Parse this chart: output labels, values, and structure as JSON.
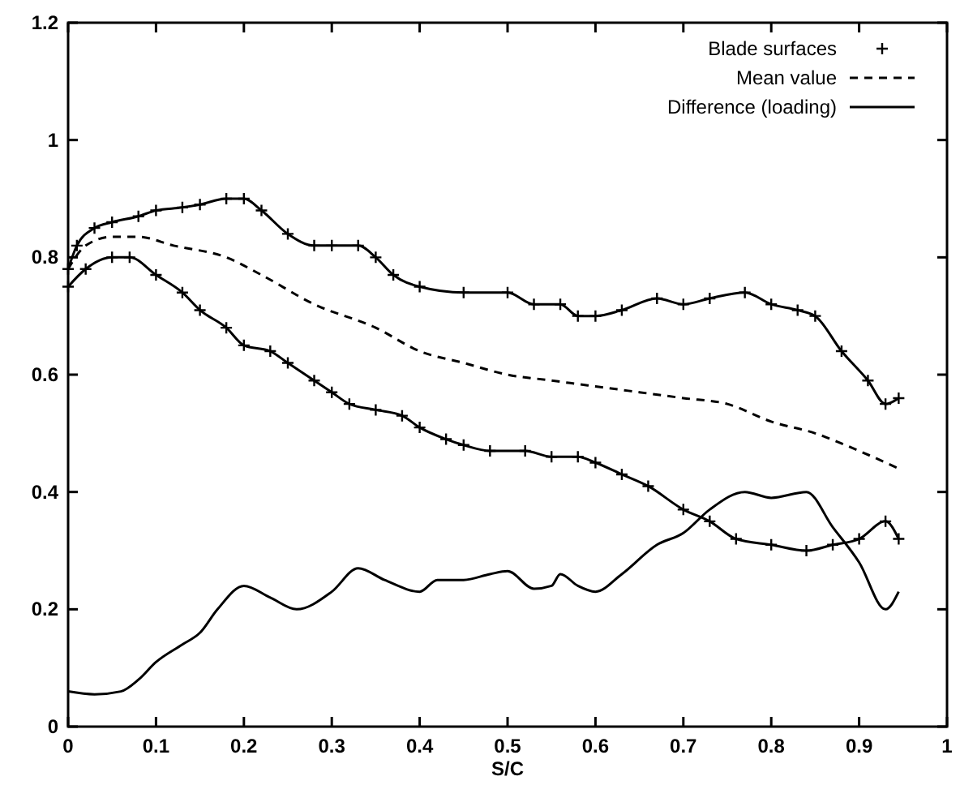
{
  "chart_data": {
    "type": "line",
    "xlabel": "S/C",
    "xlim": [
      0,
      1
    ],
    "ylim": [
      0,
      1.2
    ],
    "xticks": [
      0,
      0.1,
      0.2,
      0.3,
      0.4,
      0.5,
      0.6,
      0.7,
      0.8,
      0.9,
      1
    ],
    "yticks": [
      0,
      0.2,
      0.4,
      0.6,
      0.8,
      1,
      1.2
    ],
    "grid": false,
    "legend": "top right",
    "series": [
      {
        "name": "Blade surfaces",
        "color": "#000000",
        "marker": "cross",
        "line_style": "solid",
        "x": [
          0,
          0.01,
          0.03,
          0.05,
          0.08,
          0.1,
          0.13,
          0.15,
          0.18,
          0.2,
          0.22,
          0.25,
          0.28,
          0.3,
          0.33,
          0.35,
          0.37,
          0.4,
          0.45,
          0.5,
          0.53,
          0.56,
          0.58,
          0.6,
          0.63,
          0.67,
          0.7,
          0.73,
          0.77,
          0.8,
          0.83,
          0.85,
          0.88,
          0.91,
          0.93,
          0.945
        ],
        "values": [
          0.78,
          0.82,
          0.85,
          0.86,
          0.87,
          0.88,
          0.885,
          0.89,
          0.9,
          0.9,
          0.88,
          0.84,
          0.82,
          0.82,
          0.82,
          0.8,
          0.77,
          0.75,
          0.74,
          0.74,
          0.72,
          0.72,
          0.7,
          0.7,
          0.71,
          0.73,
          0.72,
          0.73,
          0.74,
          0.72,
          0.71,
          0.7,
          0.64,
          0.59,
          0.55,
          0.56
        ]
      },
      {
        "color": "#000000",
        "marker": "cross",
        "line_style": "solid",
        "x": [
          0,
          0.02,
          0.05,
          0.07,
          0.1,
          0.13,
          0.15,
          0.18,
          0.2,
          0.23,
          0.25,
          0.28,
          0.3,
          0.32,
          0.35,
          0.38,
          0.4,
          0.43,
          0.45,
          0.48,
          0.52,
          0.55,
          0.58,
          0.6,
          0.63,
          0.66,
          0.7,
          0.73,
          0.76,
          0.8,
          0.84,
          0.87,
          0.9,
          0.93,
          0.945
        ],
        "values": [
          0.75,
          0.78,
          0.8,
          0.8,
          0.77,
          0.74,
          0.71,
          0.68,
          0.65,
          0.64,
          0.62,
          0.59,
          0.57,
          0.55,
          0.54,
          0.53,
          0.51,
          0.49,
          0.48,
          0.47,
          0.47,
          0.46,
          0.46,
          0.45,
          0.43,
          0.41,
          0.37,
          0.35,
          0.32,
          0.31,
          0.3,
          0.31,
          0.32,
          0.35,
          0.32
        ]
      },
      {
        "name": "Mean value",
        "color": "#000000",
        "marker": "none",
        "line_style": "dashed",
        "x": [
          0,
          0.02,
          0.05,
          0.08,
          0.12,
          0.18,
          0.22,
          0.28,
          0.35,
          0.4,
          0.45,
          0.5,
          0.55,
          0.6,
          0.65,
          0.7,
          0.75,
          0.8,
          0.85,
          0.9,
          0.945
        ],
        "values": [
          0.78,
          0.82,
          0.835,
          0.835,
          0.82,
          0.8,
          0.77,
          0.72,
          0.68,
          0.64,
          0.62,
          0.6,
          0.59,
          0.58,
          0.57,
          0.56,
          0.55,
          0.52,
          0.5,
          0.47,
          0.44
        ]
      },
      {
        "name": "Difference (loading)",
        "color": "#000000",
        "marker": "none",
        "line_style": "solid",
        "x": [
          0,
          0.03,
          0.06,
          0.08,
          0.1,
          0.13,
          0.15,
          0.17,
          0.2,
          0.23,
          0.26,
          0.3,
          0.33,
          0.36,
          0.4,
          0.42,
          0.45,
          0.48,
          0.5,
          0.53,
          0.55,
          0.56,
          0.58,
          0.6,
          0.63,
          0.67,
          0.7,
          0.73,
          0.77,
          0.8,
          0.84,
          0.87,
          0.9,
          0.93,
          0.945
        ],
        "values": [
          0.06,
          0.055,
          0.06,
          0.08,
          0.11,
          0.14,
          0.16,
          0.2,
          0.24,
          0.22,
          0.2,
          0.23,
          0.27,
          0.25,
          0.23,
          0.25,
          0.25,
          0.26,
          0.265,
          0.235,
          0.24,
          0.26,
          0.24,
          0.23,
          0.26,
          0.31,
          0.33,
          0.37,
          0.4,
          0.39,
          0.4,
          0.34,
          0.28,
          0.2,
          0.23
        ]
      }
    ]
  }
}
